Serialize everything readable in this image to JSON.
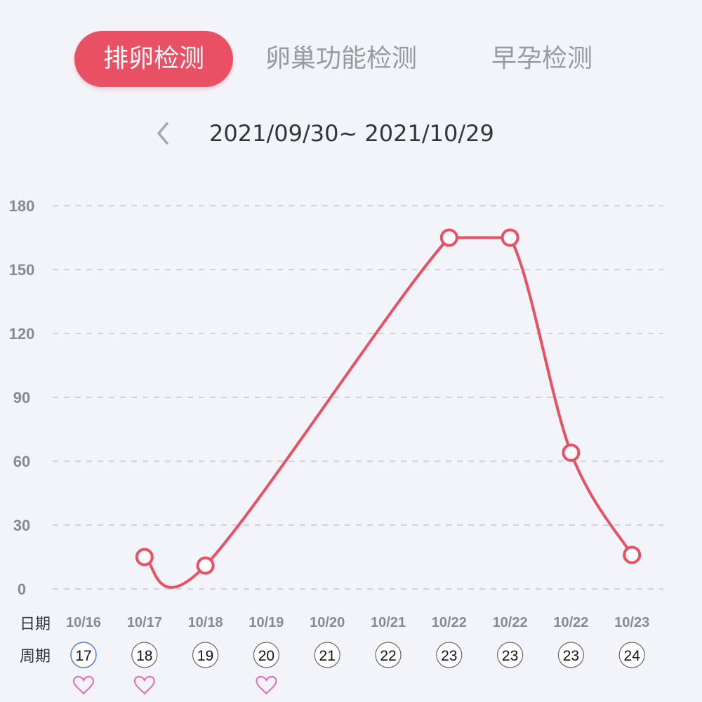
{
  "tabs": [
    {
      "label": "排卵检测",
      "active": true
    },
    {
      "label": "卵巢功能检测",
      "active": false
    },
    {
      "label": "早孕检测",
      "active": false
    }
  ],
  "date_range": "2021/09/30~ 2021/10/29",
  "icons": {
    "prev": "chevron-left-icon",
    "heart": "heart-outline-icon"
  },
  "colors": {
    "accent": "#ea5064",
    "grid": "#c8c8cc",
    "axis_text": "#8a8a8e",
    "heart": "#e86ab5",
    "today_ring": "#4a7fd6",
    "background": "#f3f4f9"
  },
  "chart_data": {
    "type": "line",
    "title": "",
    "xlabel": "",
    "ylabel": "",
    "ylim": [
      0,
      180
    ],
    "yticks": [
      0,
      30,
      60,
      90,
      120,
      150,
      180
    ],
    "grid": true,
    "row_labels": {
      "date": "日期",
      "cycle": "周期"
    },
    "dates": [
      "10/16",
      "10/17",
      "10/18",
      "10/19",
      "10/20",
      "10/21",
      "10/22",
      "10/22",
      "10/22",
      "10/23"
    ],
    "cycle_days": [
      "17",
      "18",
      "19",
      "20",
      "21",
      "22",
      "23",
      "23",
      "23",
      "24"
    ],
    "values": [
      null,
      15,
      11,
      null,
      null,
      null,
      165,
      165,
      64,
      16
    ],
    "hearts": [
      true,
      true,
      false,
      true,
      false,
      false,
      false,
      false,
      false,
      false
    ],
    "highlighted_index": 0
  }
}
